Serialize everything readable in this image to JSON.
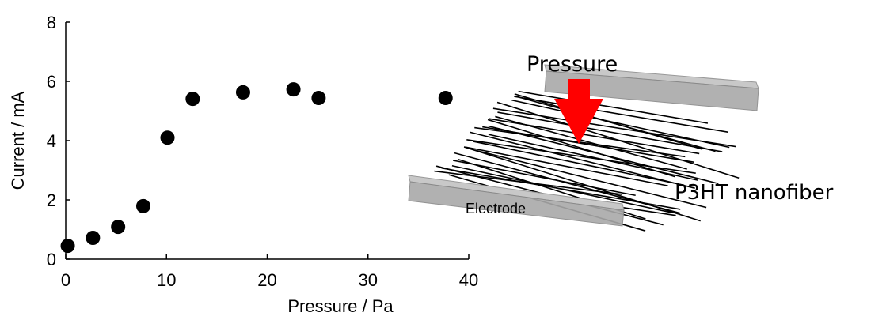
{
  "chart_data": {
    "type": "scatter",
    "xlabel": "Pressure / Pa",
    "ylabel": "Current / mA",
    "x": [
      0.2,
      2.7,
      5.2,
      7.7,
      10.1,
      12.6,
      17.6,
      22.6,
      25.1,
      37.7
    ],
    "y": [
      0.45,
      0.72,
      1.09,
      1.79,
      4.1,
      5.41,
      5.63,
      5.73,
      5.44,
      5.44
    ],
    "color": "#000000",
    "xlim": [
      0,
      40
    ],
    "ylim": [
      0,
      8
    ],
    "xticks": [
      0,
      10,
      20,
      30,
      40
    ],
    "yticks": [
      0,
      2,
      4,
      6,
      8
    ]
  },
  "diagram": {
    "pressure_label": "Pressure",
    "fiber_label": "P3HT nanofiber",
    "electrode_label": "Electrode"
  }
}
